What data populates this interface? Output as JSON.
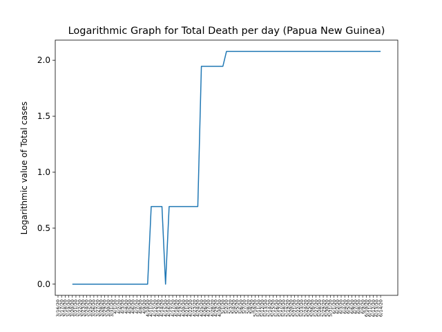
{
  "chart_data": {
    "type": "line",
    "title": "Logarithmic Graph for Total Death per day (Papua New Guinea)",
    "xlabel": "",
    "ylabel": "Logarithmic value of Total cases",
    "grid": false,
    "yticks": [
      "0.0",
      "0.5",
      "1.0",
      "1.5",
      "2.0"
    ],
    "ylim": [
      -0.1,
      2.18
    ],
    "x": [
      "3/16/20",
      "3/17/20",
      "3/18/20",
      "3/19/20",
      "3/20/20",
      "3/21/20",
      "3/22/20",
      "3/23/20",
      "3/24/20",
      "3/25/20",
      "3/26/20",
      "3/27/20",
      "3/28/20",
      "3/29/20",
      "3/30/20",
      "3/31/20",
      "4/1/20",
      "4/2/20",
      "4/3/20",
      "4/4/20",
      "4/5/20",
      "4/6/20",
      "4/7/20",
      "4/8/20",
      "4/9/20",
      "4/10/20",
      "4/11/20",
      "4/12/20",
      "4/13/20",
      "4/14/20",
      "4/15/20",
      "4/16/20",
      "4/17/20",
      "4/18/20",
      "4/19/20",
      "4/20/20",
      "4/21/20",
      "4/22/20",
      "4/23/20",
      "4/24/20",
      "4/25/20",
      "4/26/20",
      "4/27/20",
      "4/28/20",
      "4/29/20",
      "4/30/20",
      "5/1/20",
      "5/2/20",
      "5/3/20",
      "5/4/20",
      "5/5/20",
      "5/6/20",
      "5/7/20",
      "5/8/20",
      "5/9/20",
      "5/10/20",
      "5/11/20",
      "5/12/20",
      "5/13/20",
      "5/14/20",
      "5/15/20",
      "5/16/20",
      "5/17/20",
      "5/18/20",
      "5/19/20",
      "5/20/20",
      "5/21/20",
      "5/22/20",
      "5/23/20",
      "5/24/20",
      "5/25/20",
      "5/26/20",
      "5/27/20",
      "5/28/20",
      "5/29/20",
      "5/30/20",
      "5/31/20",
      "6/1/20",
      "6/2/20",
      "6/3/20",
      "6/4/20",
      "6/5/20",
      "6/6/20",
      "6/7/20",
      "6/8/20",
      "6/9/20",
      "6/10/20",
      "6/11/20",
      "6/12/20",
      "6/13/20",
      "6/14/20"
    ],
    "series": [
      {
        "color": "#1f77b4",
        "values": [
          null,
          null,
          null,
          null,
          0,
          0,
          0,
          0,
          0,
          0,
          0,
          0,
          0,
          0,
          0,
          0,
          0,
          0,
          0,
          0,
          0,
          0,
          0,
          0,
          0,
          0,
          0.693,
          0.693,
          0.693,
          0.693,
          0,
          0.693,
          0.693,
          0.693,
          0.693,
          0.693,
          0.693,
          0.693,
          0.693,
          0.693,
          1.946,
          1.946,
          1.946,
          1.946,
          1.946,
          1.946,
          1.946,
          2.079,
          2.079,
          2.079,
          2.079,
          2.079,
          2.079,
          2.079,
          2.079,
          2.079,
          2.079,
          2.079,
          2.079,
          2.079,
          2.079,
          2.079,
          2.079,
          2.079,
          2.079,
          2.079,
          2.079,
          2.079,
          2.079,
          2.079,
          2.079,
          2.079,
          2.079,
          2.079,
          2.079,
          2.079,
          2.079,
          2.079,
          2.079,
          2.079,
          2.079,
          2.079,
          2.079,
          2.079,
          2.079,
          2.079,
          2.079,
          2.079,
          2.079,
          2.079,
          2.079
        ]
      }
    ]
  }
}
